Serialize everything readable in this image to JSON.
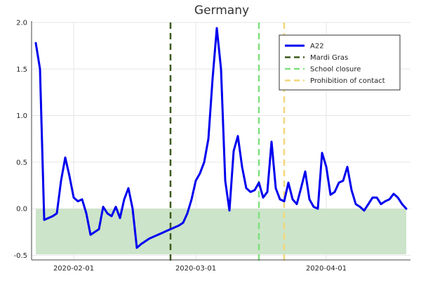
{
  "chart_data": {
    "type": "line",
    "title": "Germany",
    "xlabel": "",
    "ylabel": "",
    "x_ticks": [
      "2020-02-01",
      "2020-03-01",
      "2020-04-01"
    ],
    "x_tick_values": [
      "2020-02-01",
      "2020-03-01",
      "2020-04-01"
    ],
    "xlim": [
      "2020-01-22",
      "2020-04-21"
    ],
    "y_ticks": [
      -0.5,
      0.0,
      0.5,
      1.0,
      1.5,
      2.0
    ],
    "ylim": [
      -0.55,
      2.0
    ],
    "grid": true,
    "legend_position": "top-right",
    "band": {
      "from": "2020-01-23",
      "to": "2020-04-20",
      "y_low": -0.49,
      "y_high": 0.0,
      "color": "#cce4c9"
    },
    "series": [
      {
        "name": "A22",
        "color": "#0000ee",
        "x": [
          "2020-01-23",
          "2020-01-24",
          "2020-01-25",
          "2020-01-26",
          "2020-01-27",
          "2020-01-28",
          "2020-01-29",
          "2020-01-30",
          "2020-01-31",
          "2020-02-01",
          "2020-02-02",
          "2020-02-03",
          "2020-02-04",
          "2020-02-05",
          "2020-02-06",
          "2020-02-07",
          "2020-02-08",
          "2020-02-09",
          "2020-02-10",
          "2020-02-11",
          "2020-02-12",
          "2020-02-13",
          "2020-02-14",
          "2020-02-15",
          "2020-02-16",
          "2020-02-17",
          "2020-02-18",
          "2020-02-19",
          "2020-02-20",
          "2020-02-21",
          "2020-02-22",
          "2020-02-23",
          "2020-02-24",
          "2020-02-25",
          "2020-02-26",
          "2020-02-27",
          "2020-02-28",
          "2020-02-29",
          "2020-03-01",
          "2020-03-02",
          "2020-03-03",
          "2020-03-04",
          "2020-03-05",
          "2020-03-06",
          "2020-03-07",
          "2020-03-08",
          "2020-03-09",
          "2020-03-10",
          "2020-03-11",
          "2020-03-12",
          "2020-03-13",
          "2020-03-14",
          "2020-03-15",
          "2020-03-16",
          "2020-03-17",
          "2020-03-18",
          "2020-03-19",
          "2020-03-20",
          "2020-03-21",
          "2020-03-22",
          "2020-03-23",
          "2020-03-24",
          "2020-03-25",
          "2020-03-26",
          "2020-03-27",
          "2020-03-28",
          "2020-03-29",
          "2020-03-30",
          "2020-03-31",
          "2020-04-01",
          "2020-04-02",
          "2020-04-03",
          "2020-04-04",
          "2020-04-05",
          "2020-04-06",
          "2020-04-07",
          "2020-04-08",
          "2020-04-09",
          "2020-04-10",
          "2020-04-11",
          "2020-04-12",
          "2020-04-13",
          "2020-04-14",
          "2020-04-15",
          "2020-04-16",
          "2020-04-17",
          "2020-04-18",
          "2020-04-19",
          "2020-04-20"
        ],
        "y": [
          1.78,
          1.5,
          -0.12,
          -0.1,
          -0.08,
          -0.05,
          0.3,
          0.55,
          0.35,
          0.12,
          0.08,
          0.1,
          -0.05,
          -0.28,
          -0.25,
          -0.22,
          0.02,
          -0.05,
          -0.08,
          0.02,
          -0.1,
          0.1,
          0.22,
          0.0,
          -0.42,
          -0.38,
          -0.35,
          -0.32,
          -0.3,
          -0.28,
          -0.26,
          -0.24,
          -0.22,
          -0.2,
          -0.18,
          -0.15,
          -0.05,
          0.1,
          0.3,
          0.38,
          0.5,
          0.75,
          1.4,
          1.94,
          1.5,
          0.3,
          -0.02,
          0.62,
          0.78,
          0.45,
          0.22,
          0.18,
          0.2,
          0.28,
          0.12,
          0.18,
          0.72,
          0.22,
          0.1,
          0.08,
          0.28,
          0.1,
          0.05,
          0.22,
          0.4,
          0.1,
          0.02,
          0.0,
          0.6,
          0.45,
          0.15,
          0.18,
          0.28,
          0.3,
          0.45,
          0.2,
          0.05,
          0.02,
          -0.02,
          0.05,
          0.12,
          0.12,
          0.05,
          0.08,
          0.1,
          0.16,
          0.12,
          0.05,
          0.0
        ]
      },
      {
        "name": "Mardi Gras",
        "color": "#3d5a1e",
        "vline": "2020-02-24"
      },
      {
        "name": "School closure",
        "color": "#7ee07e",
        "vline": "2020-03-16"
      },
      {
        "name": "Prohibition of contact",
        "color": "#f2d77b",
        "vline": "2020-03-22"
      }
    ]
  }
}
